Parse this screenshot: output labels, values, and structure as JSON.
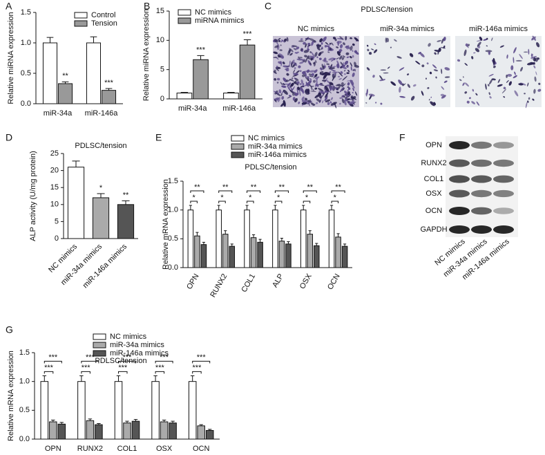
{
  "chart_data": [
    {
      "type": "bar",
      "label": "A",
      "y_label": "Relative miRNA expression",
      "categories": [
        "miR-34a",
        "miR-146a"
      ],
      "series": [
        {
          "name": "Control",
          "color": "#ffffff",
          "values": [
            1.0,
            1.0
          ],
          "errors": [
            0.09,
            0.1
          ]
        },
        {
          "name": "Tension",
          "color": "#999999",
          "values": [
            0.33,
            0.22
          ],
          "errors": [
            0.03,
            0.03
          ],
          "significance": [
            "**",
            "***"
          ]
        }
      ],
      "ylim": [
        0,
        1.5
      ],
      "yticks": [
        {
          "value": 0,
          "label": "0.0"
        },
        0.5,
        {
          "value": 1,
          "label": "1.0"
        },
        1.5
      ]
    },
    {
      "type": "bar",
      "label": "B",
      "y_label": "Relative miRNA expression",
      "categories": [
        "miR-34a",
        "miR-146a"
      ],
      "series": [
        {
          "name": "NC mimics",
          "color": "#ffffff",
          "values": [
            1.0,
            1.0
          ],
          "errors": [
            0.1,
            0.1
          ]
        },
        {
          "name": "miRNA mimics",
          "color": "#999999",
          "values": [
            6.7,
            9.2
          ],
          "errors": [
            0.7,
            0.9
          ],
          "significance": [
            "***",
            "***"
          ]
        }
      ],
      "ylim": [
        0,
        15
      ],
      "yticks": [
        0,
        5,
        10,
        15
      ]
    },
    {
      "type": "bar",
      "label": "D",
      "title": "PDLSC/tension",
      "y_label": "ALP activity (U/mg protein)",
      "categories": [
        "NC mimics",
        "miR-34a mimics",
        "miR-146a mimics"
      ],
      "values": [
        21,
        12,
        10
      ],
      "errors": [
        1.8,
        1.2,
        1.1
      ],
      "colors": [
        "#ffffff",
        "#aaaaaa",
        "#555555"
      ],
      "significance": [
        null,
        "*",
        "**"
      ],
      "ylim": [
        0,
        25
      ],
      "yticks": [
        0,
        5,
        10,
        15,
        20,
        25
      ]
    },
    {
      "type": "bar",
      "label": "E",
      "title": "PDLSC/tension",
      "y_label": "Relative mRNA expression",
      "categories": [
        "OPN",
        "RUNX2",
        "COL1",
        "ALP",
        "OSX",
        "OCN"
      ],
      "series": [
        {
          "name": "NC mimics",
          "color": "#ffffff",
          "values": [
            1,
            1,
            1,
            1,
            1,
            1
          ],
          "errors": [
            0.08,
            0.08,
            0.08,
            0.08,
            0.08,
            0.08
          ]
        },
        {
          "name": "miR-34a mimics",
          "color": "#aaaaaa",
          "values": [
            0.55,
            0.58,
            0.52,
            0.46,
            0.58,
            0.53
          ],
          "errors": [
            0.06,
            0.06,
            0.05,
            0.05,
            0.06,
            0.06
          ],
          "significance": [
            "*",
            "*",
            "*",
            "*",
            "*",
            "*"
          ]
        },
        {
          "name": "miR-146a mimics",
          "color": "#555555",
          "values": [
            0.4,
            0.37,
            0.44,
            0.41,
            0.38,
            0.37
          ],
          "errors": [
            0.04,
            0.04,
            0.05,
            0.04,
            0.04,
            0.04
          ],
          "significance": [
            "**",
            "**",
            "**",
            "**",
            "**",
            "**"
          ]
        }
      ],
      "significance_brackets": true,
      "ylim": [
        0,
        1.5
      ],
      "yticks": [
        {
          "value": 0,
          "label": "0.0"
        },
        0.5,
        {
          "value": 1,
          "label": "1.0"
        },
        1.5
      ]
    },
    {
      "type": "bar",
      "label": "G",
      "title": "PDLSC/tension",
      "y_label": "Relative mRNA expression",
      "categories": [
        "OPN",
        "RUNX2",
        "COL1",
        "OSX",
        "OCN"
      ],
      "series": [
        {
          "name": "NC mimics",
          "color": "#ffffff",
          "values": [
            1,
            1,
            1,
            1,
            1
          ],
          "errors": [
            0.1,
            0.1,
            0.1,
            0.1,
            0.1
          ]
        },
        {
          "name": "miR-34a mimics",
          "color": "#aaaaaa",
          "values": [
            0.3,
            0.32,
            0.28,
            0.3,
            0.23
          ],
          "errors": [
            0.03,
            0.03,
            0.03,
            0.03,
            0.02
          ]
        },
        {
          "name": "miR-146a mimics",
          "color": "#555555",
          "values": [
            0.26,
            0.25,
            0.31,
            0.28,
            0.15
          ],
          "errors": [
            0.03,
            0.02,
            0.03,
            0.03,
            0.02
          ]
        }
      ],
      "series_significance": [
        "***",
        "***"
      ],
      "significance_brackets": true,
      "ylim": [
        0,
        1.5
      ],
      "yticks": [
        {
          "value": 0,
          "label": "0.0"
        },
        0.5,
        {
          "value": 1,
          "label": "1.0"
        },
        1.5
      ]
    }
  ],
  "micrographs": {
    "label": "C",
    "title": "PDLSC/tension",
    "panels": [
      "NC mimics",
      "miR-34a mimics",
      "miR-146a mimics"
    ]
  },
  "western_blot": {
    "label": "F",
    "proteins": [
      "OPN",
      "RUNX2",
      "COL1",
      "OSX",
      "OCN",
      "GAPDH"
    ],
    "lanes": [
      "NC mimics",
      "miR-34a mimics",
      "miR-146a mimics"
    ]
  }
}
